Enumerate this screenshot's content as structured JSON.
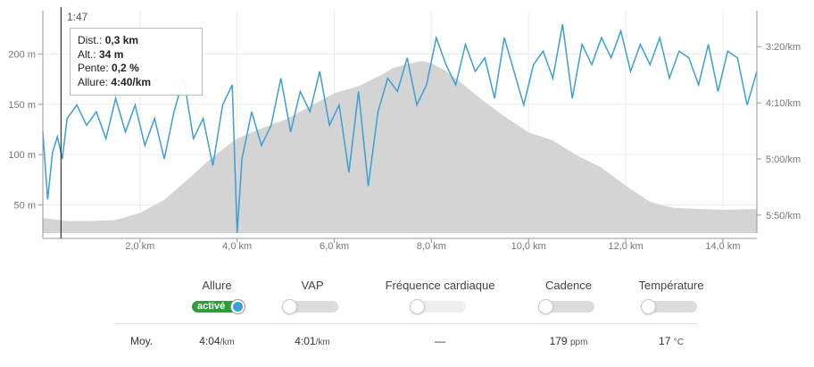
{
  "chart_data": {
    "type": "area",
    "x_ticks": [
      "2,0 km",
      "4,0 km",
      "6,0 km",
      "8,0 km",
      "10,0 km",
      "12,0 km",
      "14,0 km"
    ],
    "x_tick_values": [
      2,
      4,
      6,
      8,
      10,
      12,
      14
    ],
    "xlim": [
      0,
      14.7
    ],
    "y_left_ticks": [
      "50 m",
      "100 m",
      "150 m",
      "200 m"
    ],
    "y_left_values": [
      50,
      100,
      150,
      200
    ],
    "y_left_lim": [
      22,
      243
    ],
    "y_right_ticks": [
      "3:20/km",
      "4:10/km",
      "5:00/km",
      "5:50/km"
    ],
    "y_right_values_min_per_km": [
      3.333,
      4.167,
      5.0,
      5.833
    ],
    "y_right_lim": [
      2.8,
      6.1
    ],
    "grid": true,
    "series": [
      {
        "name": "Alt.",
        "kind": "area",
        "color": "#d4d4d4",
        "x": [
          0,
          0.5,
          1.0,
          1.5,
          2.0,
          2.5,
          3.0,
          3.5,
          4.0,
          4.5,
          5.0,
          5.5,
          6.0,
          6.5,
          7.0,
          7.2,
          7.5,
          7.8,
          8.0,
          8.3,
          8.6,
          9.0,
          9.5,
          10.0,
          10.5,
          11.0,
          11.5,
          12.0,
          12.5,
          12.8,
          13.0,
          13.5,
          14.0,
          14.7
        ],
        "y": [
          37,
          34,
          34,
          35,
          42,
          55,
          76,
          98,
          116,
          126,
          135,
          148,
          161,
          168,
          180,
          186,
          190,
          193,
          191,
          183,
          172,
          156,
          138,
          122,
          114,
          99,
          87,
          69,
          53,
          49,
          47,
          46,
          45,
          46
        ]
      },
      {
        "name": "Allure",
        "kind": "line",
        "color": "#3b9fd6",
        "x": [
          0,
          0.1,
          0.2,
          0.3,
          0.4,
          0.5,
          0.7,
          0.9,
          1.1,
          1.3,
          1.5,
          1.7,
          1.9,
          2.1,
          2.3,
          2.5,
          2.7,
          2.9,
          3.1,
          3.3,
          3.5,
          3.7,
          3.9,
          4.0,
          4.1,
          4.3,
          4.5,
          4.7,
          4.9,
          5.1,
          5.3,
          5.5,
          5.7,
          5.9,
          6.1,
          6.3,
          6.5,
          6.7,
          6.9,
          7.1,
          7.3,
          7.5,
          7.7,
          7.9,
          8.1,
          8.3,
          8.5,
          8.7,
          8.9,
          9.1,
          9.3,
          9.5,
          9.7,
          9.9,
          10.1,
          10.3,
          10.5,
          10.7,
          10.9,
          11.1,
          11.3,
          11.5,
          11.7,
          11.9,
          12.1,
          12.3,
          12.5,
          12.7,
          12.9,
          13.1,
          13.3,
          13.5,
          13.7,
          13.9,
          14.1,
          14.3,
          14.5,
          14.7
        ],
        "y_min_per_km": [
          4.6,
          5.6,
          4.9,
          4.67,
          5.0,
          4.4,
          4.2,
          4.5,
          4.3,
          4.7,
          4.1,
          4.6,
          4.2,
          4.8,
          4.4,
          5.0,
          4.3,
          3.8,
          4.7,
          4.4,
          5.1,
          4.2,
          3.9,
          6.1,
          5.0,
          4.3,
          4.8,
          4.5,
          3.8,
          4.6,
          4.0,
          4.3,
          3.7,
          4.5,
          4.2,
          5.2,
          4.0,
          5.4,
          4.3,
          3.8,
          4.0,
          3.5,
          4.2,
          3.9,
          3.2,
          3.6,
          3.9,
          3.3,
          3.7,
          3.5,
          4.1,
          3.2,
          3.7,
          4.2,
          3.6,
          3.4,
          3.8,
          3.0,
          4.1,
          3.3,
          3.6,
          3.2,
          3.5,
          3.1,
          3.7,
          3.3,
          3.6,
          3.2,
          3.8,
          3.4,
          3.5,
          3.9,
          3.3,
          4.0,
          3.4,
          3.5,
          4.2,
          3.7
        ]
      }
    ],
    "cursor": {
      "x": 0.3,
      "label": "1:47"
    }
  },
  "tooltip": {
    "dist_label": "Dist.:",
    "dist_value": "0,3 km",
    "alt_label": "Alt.:",
    "alt_value": "34 m",
    "slope_label": "Pente:",
    "slope_value": "0,2 %",
    "pace_label": "Allure:",
    "pace_value": "4:40/km"
  },
  "colors": {
    "pace_line": "#3b9fd6",
    "elevation_fill": "#d4d4d4",
    "active_toggle": "#2f9e3a"
  },
  "controls": [
    {
      "label": "Allure",
      "state": "on",
      "on_text": "activé"
    },
    {
      "label": "VAP",
      "state": "off"
    },
    {
      "label": "Fréquence cardiaque",
      "state": "disabled"
    },
    {
      "label": "Cadence",
      "state": "off"
    },
    {
      "label": "Température",
      "state": "off"
    }
  ],
  "averages": {
    "label": "Moy.",
    "pace": {
      "value": "4:04",
      "unit": "/km"
    },
    "vap": {
      "value": "4:01",
      "unit": "/km"
    },
    "heart_rate": {
      "value": "—",
      "unit": ""
    },
    "cadence": {
      "value": "179",
      "unit": "ppm"
    },
    "temperature": {
      "value": "17",
      "unit": "°C"
    }
  }
}
